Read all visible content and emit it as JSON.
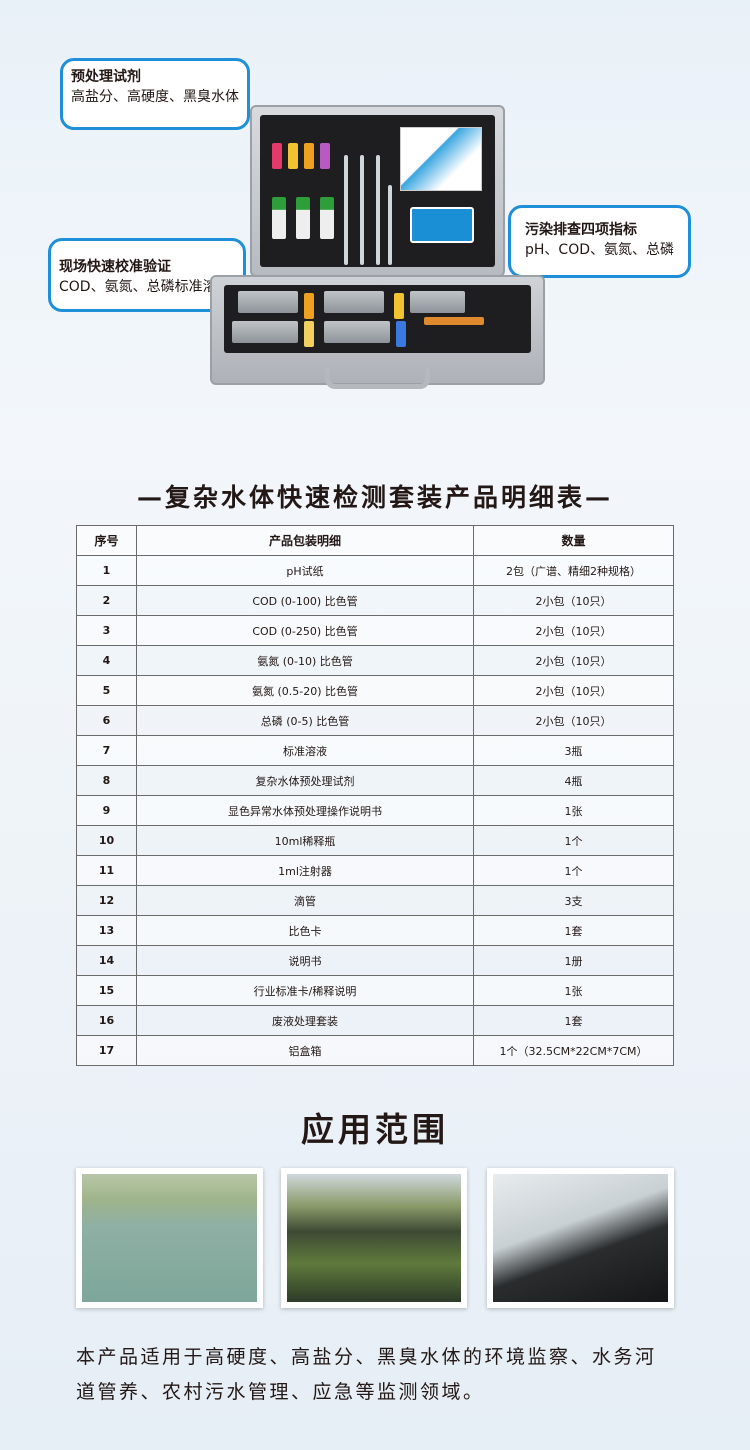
{
  "callouts": [
    {
      "title": "预处理试剂",
      "text": "高盐分、高硬度、黑臭水体"
    },
    {
      "title": "现场快速校准验证",
      "text": "COD、氨氮、总磷标准溶液"
    },
    {
      "title": "污染排查四项指标",
      "text": "pH、COD、氨氮、总磷"
    }
  ],
  "table_title": "—复杂水体快速检测套装产品明细表—",
  "table": {
    "headers": [
      "序号",
      "产品包装明细",
      "数量"
    ],
    "rows": [
      [
        "1",
        "pH试纸",
        "2包（广谱、精细2种规格）"
      ],
      [
        "2",
        "COD (0-100) 比色管",
        "2小包（10只）"
      ],
      [
        "3",
        "COD (0-250) 比色管",
        "2小包（10只）"
      ],
      [
        "4",
        "氨氮 (0-10) 比色管",
        "2小包（10只）"
      ],
      [
        "5",
        "氨氮 (0.5-20) 比色管",
        "2小包（10只）"
      ],
      [
        "6",
        "总磷 (0-5) 比色管",
        "2小包（10只）"
      ],
      [
        "7",
        "标准溶液",
        "3瓶"
      ],
      [
        "8",
        "复杂水体预处理试剂",
        "4瓶"
      ],
      [
        "9",
        "显色异常水体预处理操作说明书",
        "1张"
      ],
      [
        "10",
        "10ml稀释瓶",
        "1个"
      ],
      [
        "11",
        "1ml注射器",
        "1个"
      ],
      [
        "12",
        "滴管",
        "3支"
      ],
      [
        "13",
        "比色卡",
        "1套"
      ],
      [
        "14",
        "说明书",
        "1册"
      ],
      [
        "15",
        "行业标准卡/稀释说明",
        "1张"
      ],
      [
        "16",
        "废液处理套装",
        "1套"
      ],
      [
        "17",
        "铝盒箱",
        "1个（32.5CM*22CM*7CM）"
      ]
    ]
  },
  "application": {
    "title": "应用范围",
    "description": "本产品适用于高硬度、高盐分、黑臭水体的环境监察、水务河道管养、农村污水管理、应急等监测领域。"
  },
  "colors": {
    "accent": "#1e8fd8",
    "text": "#231815"
  }
}
